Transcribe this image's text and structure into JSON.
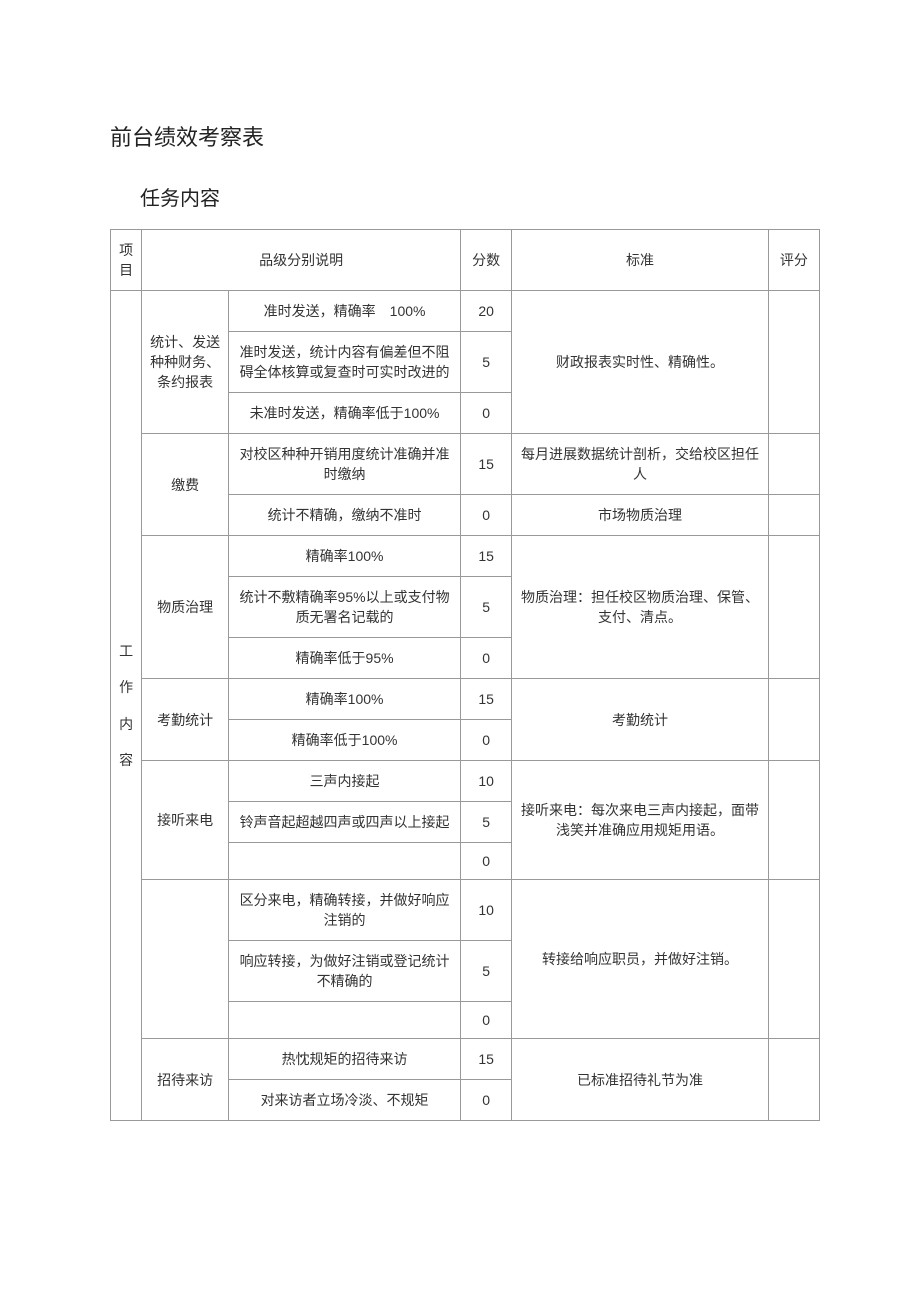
{
  "title": "前台绩效考察表",
  "subtitle": "任务内容",
  "headers": {
    "project": "项目",
    "grade_desc": "品级分别说明",
    "score": "分数",
    "standard": "标准",
    "eval": "评分"
  },
  "category_label": "工 作 内 容",
  "groups": [
    {
      "item": "统计、发送种种财务、条约报表",
      "standard": "财政报表实时性、精确性。",
      "rows": [
        {
          "desc": "准时发送，精确率　100%",
          "score": "20"
        },
        {
          "desc": "准时发送，统计内容有偏差但不阻碍全体核算或复查时可实时改进的",
          "score": "5"
        },
        {
          "desc": "未准时发送，精确率低于100%",
          "score": "0"
        }
      ]
    },
    {
      "item": "缴费",
      "standard_rows": [
        "每月进展数据统计剖析，交给校区担任人",
        "市场物质治理"
      ],
      "rows": [
        {
          "desc": "对校区种种开销用度统计准确并准时缴纳",
          "score": "15"
        },
        {
          "desc": "统计不精确，缴纳不准时",
          "score": "0"
        }
      ]
    },
    {
      "item": "物质治理",
      "standard": "物质治理：担任校区物质治理、保管、支付、清点。",
      "rows": [
        {
          "desc": "精确率100%",
          "score": "15"
        },
        {
          "desc": "统计不敷精确率95%以上或支付物质无署名记载的",
          "score": "5"
        },
        {
          "desc": "精确率低于95%",
          "score": "0"
        }
      ]
    },
    {
      "item": "考勤统计",
      "standard": "考勤统计",
      "rows": [
        {
          "desc": "精确率100%",
          "score": "15"
        },
        {
          "desc": "精确率低于100%",
          "score": "0"
        }
      ]
    },
    {
      "item": "接听来电",
      "standard": "接听来电：每次来电三声内接起，面带浅笑并准确应用规矩用语。",
      "rows": [
        {
          "desc": "三声内接起",
          "score": "10"
        },
        {
          "desc": "铃声音起超越四声或四声以上接起",
          "score": "5"
        },
        {
          "desc": "",
          "score": "0"
        }
      ]
    },
    {
      "item": "",
      "standard": "转接给响应职员，并做好注销。",
      "rows": [
        {
          "desc": "区分来电，精确转接，并做好响应注销的",
          "score": "10"
        },
        {
          "desc": "响应转接，为做好注销或登记统计不精确的",
          "score": "5"
        },
        {
          "desc": "",
          "score": "0"
        }
      ]
    },
    {
      "item": "招待来访",
      "standard": "已标准招待礼节为准",
      "rows": [
        {
          "desc": "热忱规矩的招待来访",
          "score": "15"
        },
        {
          "desc": "对来访者立场冷淡、不规矩",
          "score": "0"
        }
      ]
    }
  ],
  "colors": {
    "border": "#999999",
    "text": "#333333",
    "background": "#ffffff"
  },
  "fontsize": {
    "title": 22,
    "subtitle": 20,
    "cell": 14
  }
}
